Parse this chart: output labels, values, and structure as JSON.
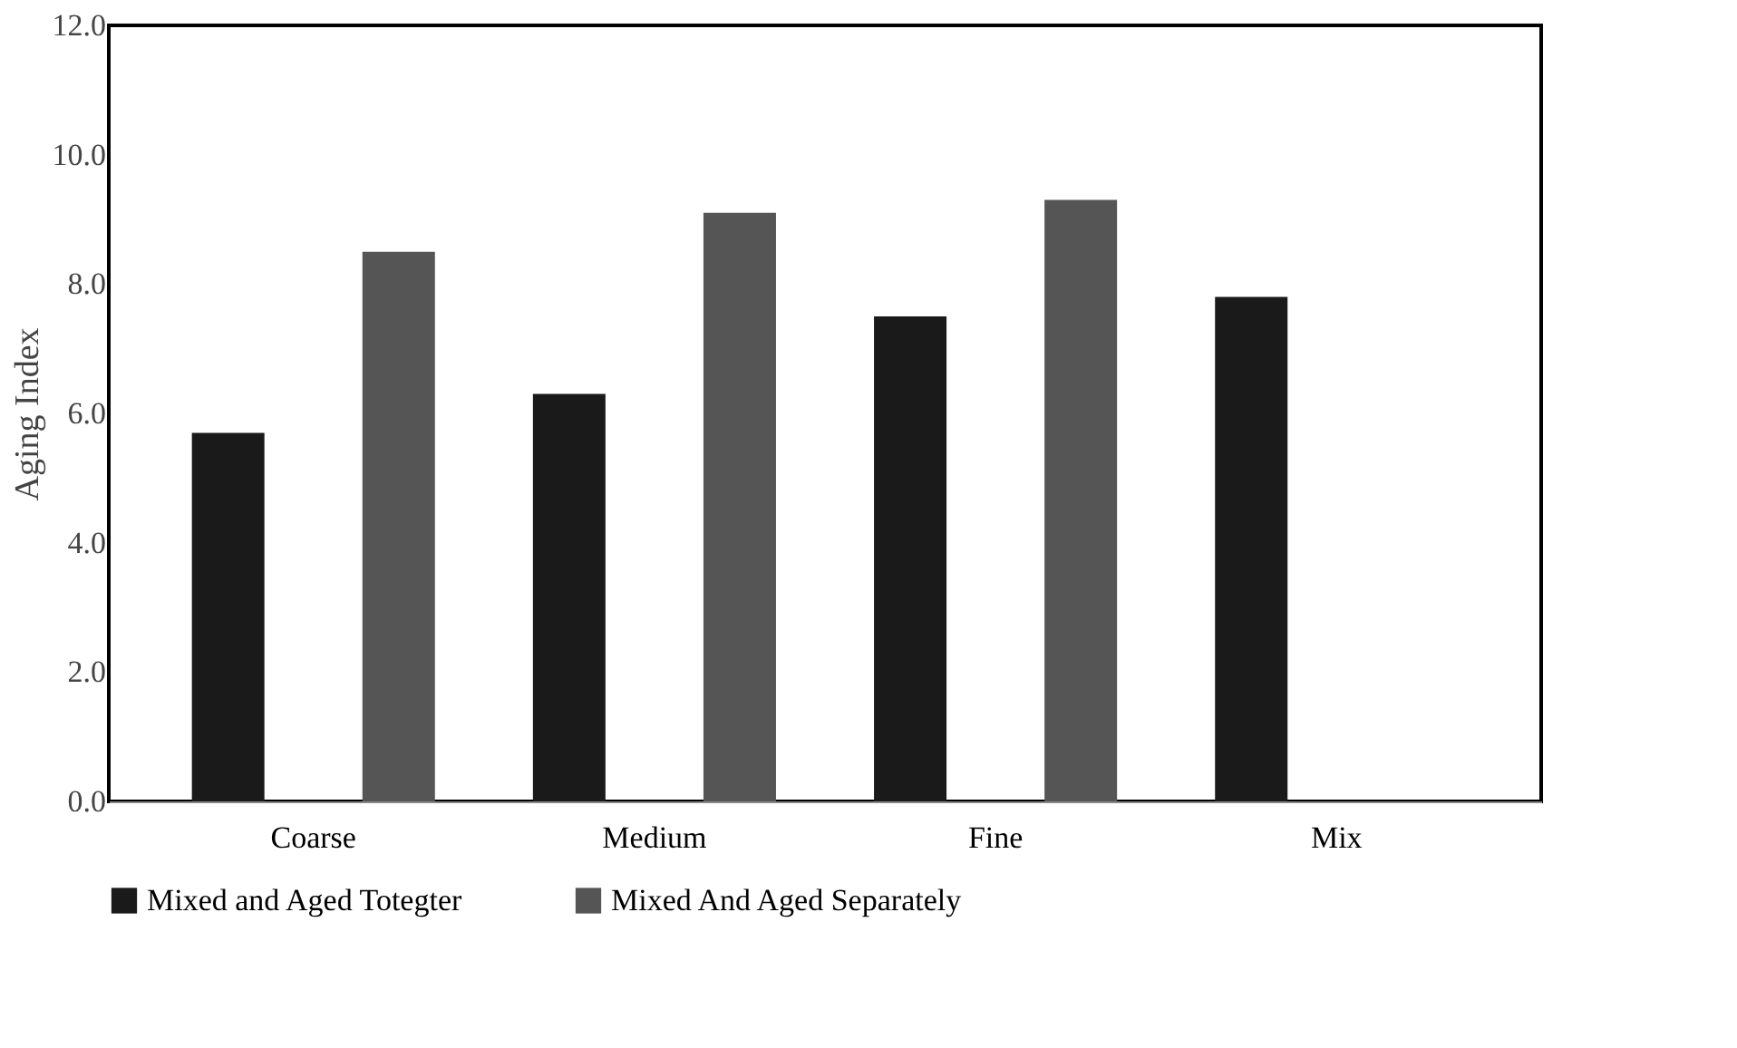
{
  "chart_data": {
    "type": "bar",
    "ylabel": "Aging Index",
    "categories": [
      "Coarse",
      "Medium",
      "Fine",
      "Mix"
    ],
    "series": [
      {
        "name": "Mixed and Aged Totegter",
        "color": "#1a1a1a",
        "values": [
          5.7,
          6.3,
          7.5,
          7.8
        ]
      },
      {
        "name": "Mixed And Aged Separately",
        "color": "#555555",
        "values": [
          8.5,
          9.1,
          9.3,
          null
        ]
      }
    ],
    "ylim": [
      0,
      12
    ],
    "yticks": [
      {
        "value": 0,
        "label": "0.0"
      },
      {
        "value": 2,
        "label": "2.0"
      },
      {
        "value": 4,
        "label": "4.0"
      },
      {
        "value": 6,
        "label": "6.0"
      },
      {
        "value": 8,
        "label": "8.0"
      },
      {
        "value": 10,
        "label": "10.0"
      },
      {
        "value": 12,
        "label": "12.0"
      }
    ],
    "grid": false,
    "legend": "bottom"
  }
}
